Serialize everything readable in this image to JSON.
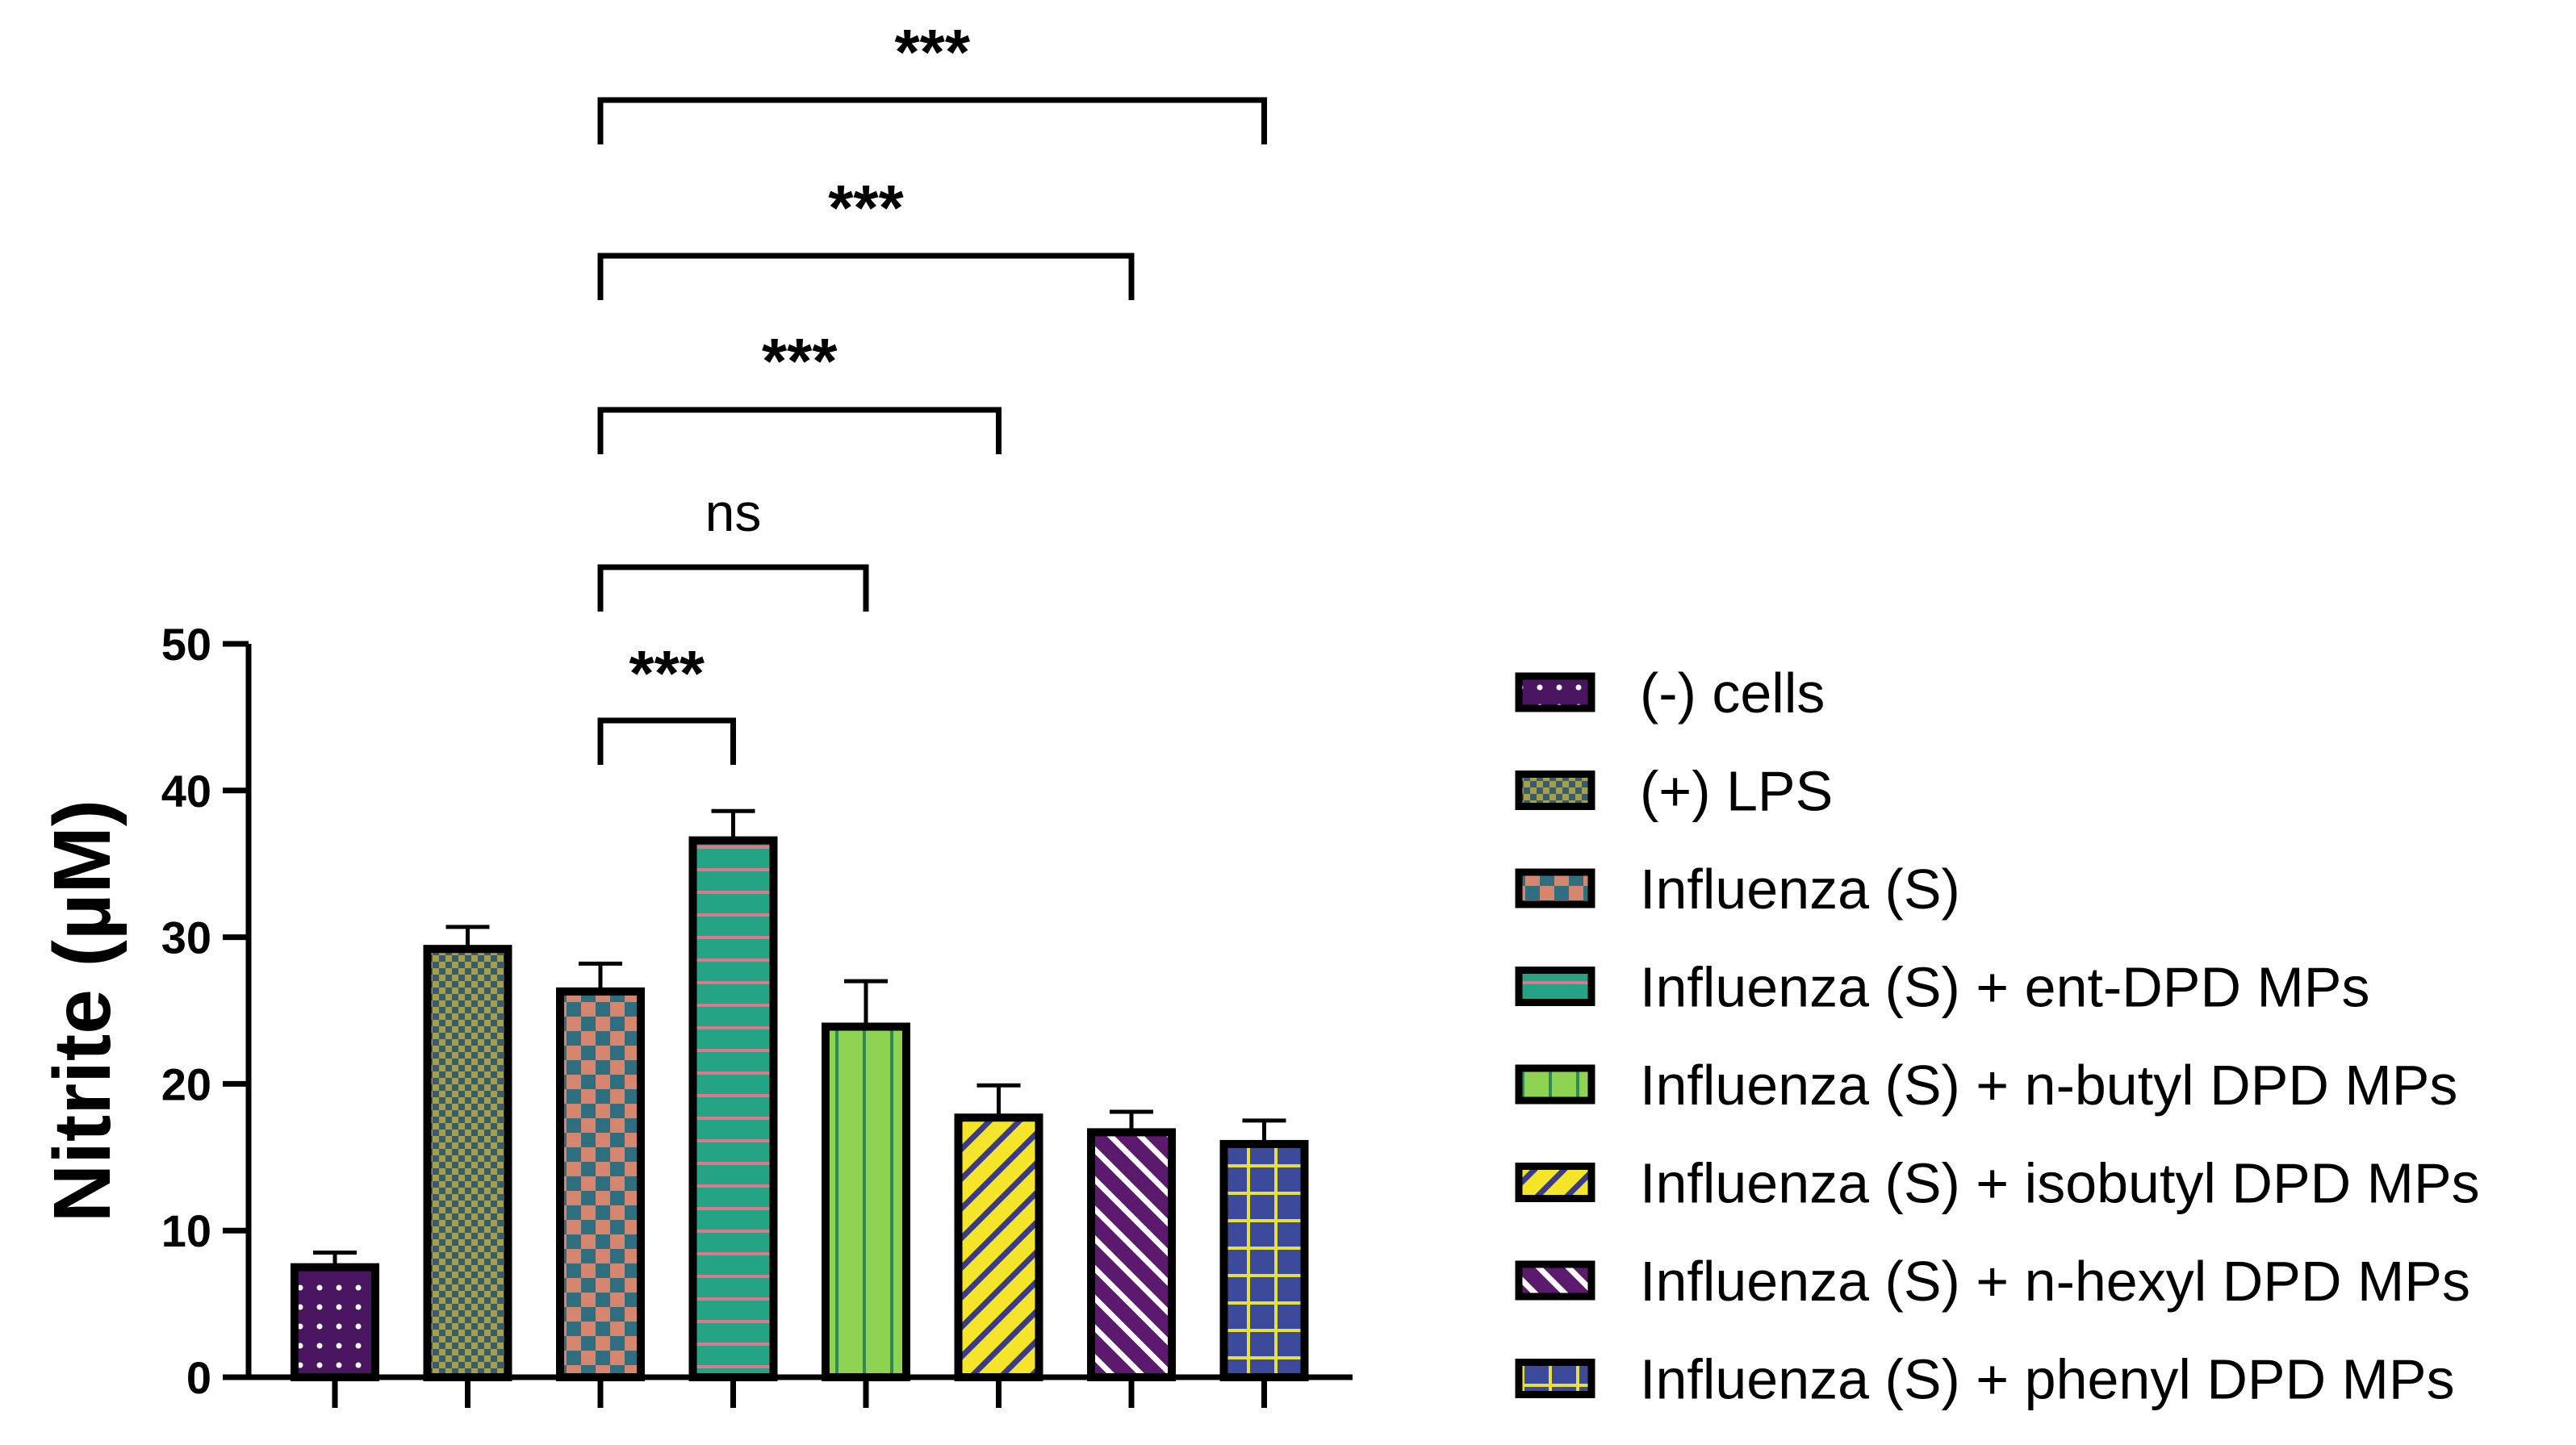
{
  "chart_data": {
    "type": "bar",
    "ylabel": "Nitrite (µM)",
    "xlabel": "",
    "ylim": [
      0,
      50
    ],
    "yticks": [
      "0",
      "10",
      "20",
      "30",
      "40",
      "50"
    ],
    "legend_position": "right",
    "categories": [
      "(-) cells",
      "(+) LPS",
      "Influenza (S)",
      "Influenza (S) + ent-DPD MPs",
      "Influenza (S) + n-butyl DPD MPs",
      "Influenza (S) + isobutyl DPD MPs",
      "Influenza (S) + n-hexyl DPD MPs",
      "Influenza (S) + phenyl DPD MPs"
    ],
    "values": [
      7.5,
      29.2,
      26.3,
      36.6,
      23.9,
      17.7,
      16.7,
      15.9
    ],
    "errors": [
      1.0,
      1.5,
      1.9,
      2.0,
      3.1,
      2.2,
      1.4,
      1.6
    ],
    "colors": [
      {
        "bg": "#4a1560",
        "fg": "#ffffff",
        "pattern": "dots"
      },
      {
        "bg": "#a3a04a",
        "fg": "#3b5a6a",
        "pattern": "fine-checker"
      },
      {
        "bg": "#d4876e",
        "fg": "#2e6e7e",
        "pattern": "checker"
      },
      {
        "bg": "#24a385",
        "fg": "#d87a8a",
        "pattern": "hlines"
      },
      {
        "bg": "#8ed352",
        "fg": "#2e8b57",
        "pattern": "vlines"
      },
      {
        "bg": "#f4e52a",
        "fg": "#3a3a8a",
        "pattern": "diag-right"
      },
      {
        "bg": "#5c1a6e",
        "fg": "#ffffff",
        "pattern": "diag-left"
      },
      {
        "bg": "#3b4a9a",
        "fg": "#e8e03a",
        "pattern": "grid"
      }
    ],
    "comparisons": [
      {
        "from": 2,
        "to": 3,
        "label": "***"
      },
      {
        "from": 2,
        "to": 4,
        "label": "ns"
      },
      {
        "from": 2,
        "to": 5,
        "label": "***"
      },
      {
        "from": 2,
        "to": 6,
        "label": "***"
      },
      {
        "from": 2,
        "to": 7,
        "label": "***"
      }
    ]
  }
}
